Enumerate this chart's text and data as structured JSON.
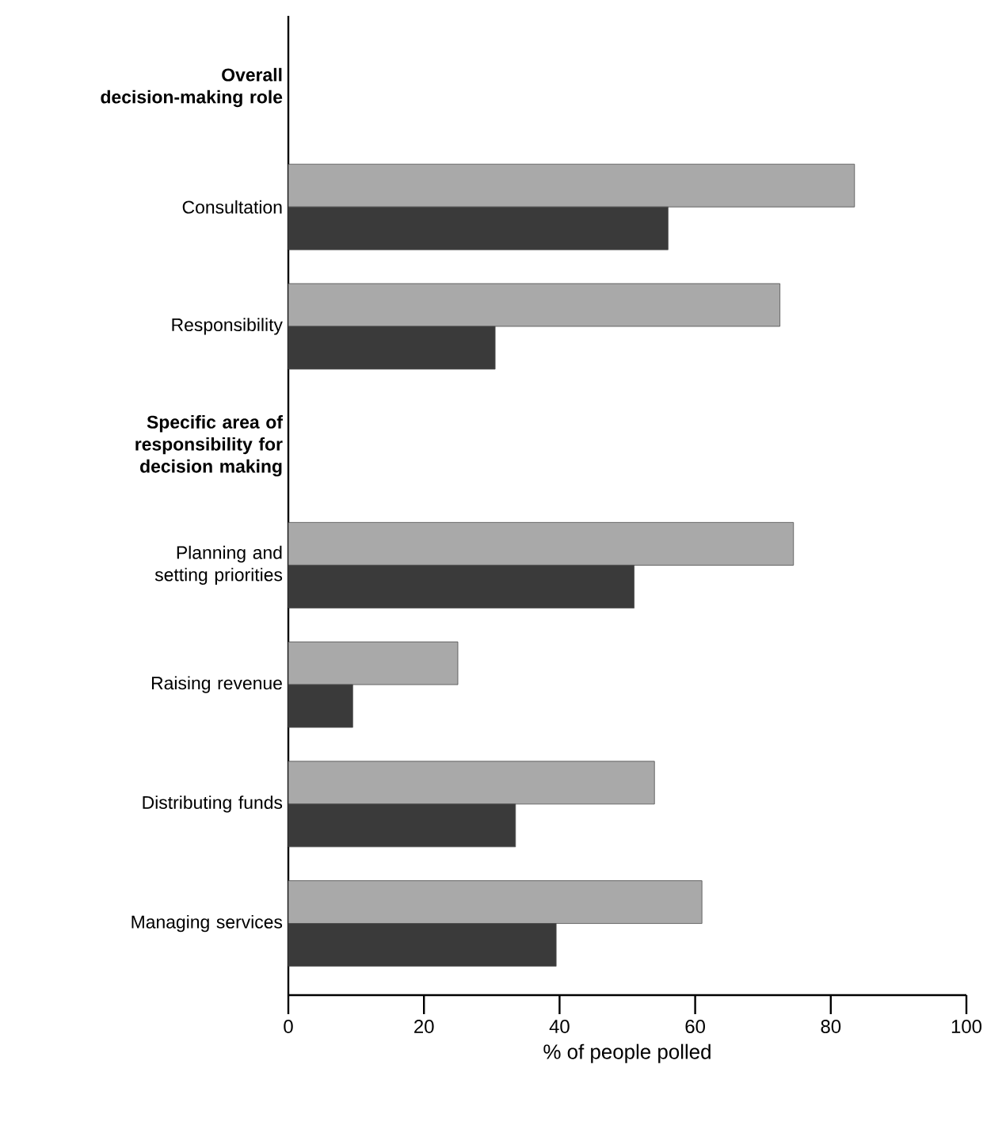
{
  "chart_data": {
    "type": "bar",
    "orientation": "horizontal",
    "xlabel": "% of people polled",
    "categories": [
      "**Overall decision-making role**",
      "Consultation",
      "Responsibility",
      "**Specific area of responsibility for decision making**",
      "Planning and setting priorities",
      "Raising revenue",
      "Distributing funds",
      "Managing services"
    ],
    "series": [
      {
        "color": "#a9a9a9",
        "values": [
          null,
          83.5,
          72.5,
          null,
          74.5,
          25,
          54,
          61
        ]
      },
      {
        "color": "#3a3a3a",
        "values": [
          null,
          56,
          30.5,
          null,
          51,
          9.5,
          33.5,
          39.5
        ]
      }
    ],
    "xlim": [
      0,
      100
    ],
    "xticks": [
      0,
      20,
      40,
      60,
      80,
      100
    ],
    "grid": false
  }
}
